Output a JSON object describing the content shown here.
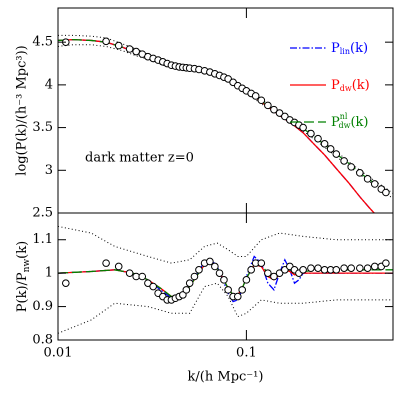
{
  "chart_data": [
    {
      "type": "line",
      "ylabel": "log(P(k)/(h⁻³ Mpc³))",
      "annotation": "dark matter z=0",
      "xscale": "log",
      "xlim": [
        0.01,
        0.6
      ],
      "ylim": [
        2.5,
        4.9
      ],
      "yticks": [
        2.5,
        3,
        3.5,
        4,
        4.5
      ],
      "series": [
        {
          "name": "P",
          "name_sub": "lin",
          "name_tail": "(k)",
          "color": "#0000ff",
          "line": "dashdot",
          "x": [
            0.01,
            0.012,
            0.015,
            0.018,
            0.022,
            0.026,
            0.03,
            0.035,
            0.04,
            0.045,
            0.05,
            0.055,
            0.06,
            0.07,
            0.08,
            0.09,
            0.1,
            0.12,
            0.14,
            0.16,
            0.18,
            0.2,
            0.23,
            0.26,
            0.3,
            0.35,
            0.4,
            0.45,
            0.5,
            0.55,
            0.6
          ],
          "values": [
            4.52,
            4.53,
            4.52,
            4.5,
            4.44,
            4.38,
            4.33,
            4.27,
            4.22,
            4.2,
            4.19,
            4.18,
            4.16,
            4.12,
            4.07,
            3.99,
            3.92,
            3.8,
            3.69,
            3.6,
            3.52,
            3.44,
            3.3,
            3.18,
            3.02,
            2.85,
            2.69,
            2.56,
            2.45,
            2.35,
            2.26
          ]
        },
        {
          "name": "P",
          "name_sub": "dw",
          "name_tail": "(k)",
          "color": "#ff0000",
          "line": "solid",
          "x": [
            0.01,
            0.012,
            0.015,
            0.018,
            0.022,
            0.026,
            0.03,
            0.035,
            0.04,
            0.045,
            0.05,
            0.055,
            0.06,
            0.07,
            0.08,
            0.09,
            0.1,
            0.12,
            0.14,
            0.16,
            0.18,
            0.2,
            0.23,
            0.26,
            0.3,
            0.35,
            0.4,
            0.45,
            0.5,
            0.55,
            0.6
          ],
          "values": [
            4.52,
            4.53,
            4.52,
            4.5,
            4.44,
            4.38,
            4.33,
            4.27,
            4.22,
            4.2,
            4.19,
            4.18,
            4.16,
            4.12,
            4.06,
            3.99,
            3.93,
            3.8,
            3.69,
            3.6,
            3.52,
            3.44,
            3.3,
            3.18,
            3.02,
            2.85,
            2.69,
            2.56,
            2.45,
            2.35,
            2.26
          ]
        },
        {
          "name": "P",
          "name_sub": "dw",
          "name_sup": "nl",
          "name_tail": "(k)",
          "color": "#008000",
          "line": "dashed",
          "x": [
            0.01,
            0.012,
            0.015,
            0.018,
            0.022,
            0.026,
            0.03,
            0.035,
            0.04,
            0.045,
            0.05,
            0.055,
            0.06,
            0.07,
            0.08,
            0.09,
            0.1,
            0.12,
            0.14,
            0.16,
            0.18,
            0.2,
            0.23,
            0.26,
            0.3,
            0.35,
            0.4,
            0.45,
            0.5,
            0.55,
            0.6
          ],
          "values": [
            4.52,
            4.53,
            4.52,
            4.5,
            4.44,
            4.38,
            4.33,
            4.27,
            4.23,
            4.21,
            4.2,
            4.185,
            4.165,
            4.12,
            4.06,
            3.99,
            3.93,
            3.81,
            3.71,
            3.63,
            3.56,
            3.49,
            3.39,
            3.3,
            3.19,
            3.08,
            2.97,
            2.89,
            2.82,
            2.76,
            2.7
          ]
        },
        {
          "color": "#000000",
          "line": "dotted",
          "x": [
            0.01,
            0.012,
            0.015,
            0.018,
            0.022,
            0.026,
            0.03,
            0.035,
            0.04,
            0.045,
            0.05,
            0.055,
            0.06,
            0.07,
            0.08,
            0.09,
            0.1,
            0.12,
            0.14,
            0.16,
            0.18,
            0.2,
            0.23,
            0.26,
            0.3,
            0.35,
            0.4,
            0.45,
            0.5,
            0.55,
            0.6
          ],
          "values": [
            4.58,
            4.58,
            4.57,
            4.55,
            4.48,
            4.42,
            4.36,
            4.3,
            4.25,
            4.23,
            4.22,
            4.2,
            4.18,
            4.14,
            4.09,
            4.01,
            3.95,
            3.83,
            3.73,
            3.65,
            3.58,
            3.51,
            3.41,
            3.32,
            3.22,
            3.1,
            3.0,
            2.92,
            2.85,
            2.79,
            2.73
          ]
        },
        {
          "color": "#000000",
          "line": "dotted",
          "x": [
            0.01,
            0.012,
            0.015,
            0.018,
            0.022,
            0.026,
            0.03,
            0.035,
            0.04,
            0.045,
            0.05,
            0.055,
            0.06,
            0.07,
            0.08,
            0.09,
            0.1,
            0.12,
            0.14,
            0.16,
            0.18,
            0.2,
            0.23,
            0.26,
            0.3,
            0.35,
            0.4,
            0.45,
            0.5,
            0.55,
            0.6
          ],
          "values": [
            4.45,
            4.47,
            4.47,
            4.45,
            4.4,
            4.34,
            4.3,
            4.24,
            4.2,
            4.18,
            4.17,
            4.16,
            4.14,
            4.1,
            4.04,
            3.97,
            3.9,
            3.78,
            3.68,
            3.6,
            3.53,
            3.46,
            3.36,
            3.27,
            3.16,
            3.05,
            2.95,
            2.87,
            2.79,
            2.73,
            2.67
          ]
        },
        {
          "color": "#000000",
          "line": "none",
          "marker": "circle",
          "x": [
            0.011,
            0.018,
            0.021,
            0.024,
            0.026,
            0.028,
            0.03,
            0.032,
            0.034,
            0.036,
            0.038,
            0.04,
            0.042,
            0.044,
            0.046,
            0.048,
            0.05,
            0.053,
            0.056,
            0.06,
            0.064,
            0.068,
            0.072,
            0.076,
            0.08,
            0.085,
            0.09,
            0.095,
            0.1,
            0.106,
            0.112,
            0.12,
            0.13,
            0.14,
            0.15,
            0.16,
            0.17,
            0.18,
            0.19,
            0.2,
            0.22,
            0.24,
            0.26,
            0.28,
            0.3,
            0.33,
            0.36,
            0.4,
            0.44,
            0.48,
            0.52,
            0.55
          ],
          "values": [
            4.5,
            4.51,
            4.46,
            4.42,
            4.39,
            4.36,
            4.33,
            4.31,
            4.29,
            4.27,
            4.25,
            4.23,
            4.22,
            4.21,
            4.205,
            4.2,
            4.195,
            4.19,
            4.18,
            4.165,
            4.15,
            4.13,
            4.11,
            4.09,
            4.07,
            4.03,
            3.99,
            3.96,
            3.93,
            3.9,
            3.87,
            3.82,
            3.76,
            3.71,
            3.67,
            3.63,
            3.59,
            3.56,
            3.53,
            3.5,
            3.43,
            3.37,
            3.31,
            3.25,
            3.19,
            3.11,
            3.04,
            2.97,
            2.9,
            2.84,
            2.78,
            2.74
          ]
        }
      ]
    },
    {
      "type": "line",
      "ylabel": {
        "main": "P(k)/P",
        "sub": "nw",
        "tail": "(k)"
      },
      "xlabel": "k/(h Mpc⁻¹)",
      "xscale": "log",
      "xlim": [
        0.01,
        0.6
      ],
      "xticks": [
        0.01,
        0.1
      ],
      "ylim": [
        0.8,
        1.18
      ],
      "yticks": [
        0.8,
        0.9,
        1,
        1.1
      ],
      "series": [
        {
          "color": "#0000ff",
          "line": "dashdot",
          "x": [
            0.01,
            0.015,
            0.02,
            0.025,
            0.03,
            0.035,
            0.04,
            0.045,
            0.05,
            0.055,
            0.06,
            0.065,
            0.07,
            0.075,
            0.08,
            0.085,
            0.09,
            0.095,
            0.1,
            0.11,
            0.12,
            0.13,
            0.14,
            0.15,
            0.16,
            0.17,
            0.18,
            0.19,
            0.2,
            0.25,
            0.3,
            0.4,
            0.5,
            0.6
          ],
          "values": [
            1.0,
            1.005,
            1.01,
            1.0,
            0.98,
            0.95,
            0.925,
            0.93,
            0.96,
            1.0,
            1.035,
            1.04,
            1.02,
            0.98,
            0.94,
            0.915,
            0.92,
            0.95,
            0.99,
            1.05,
            1.03,
            0.97,
            0.95,
            1.0,
            1.04,
            1.01,
            0.97,
            0.98,
            1.0,
            1.0,
            1.0,
            1.0,
            1.0,
            1.0
          ]
        },
        {
          "color": "#ff0000",
          "line": "solid",
          "x": [
            0.01,
            0.015,
            0.02,
            0.025,
            0.03,
            0.035,
            0.04,
            0.045,
            0.05,
            0.055,
            0.06,
            0.065,
            0.07,
            0.075,
            0.08,
            0.085,
            0.09,
            0.095,
            0.1,
            0.11,
            0.12,
            0.13,
            0.14,
            0.15,
            0.16,
            0.17,
            0.18,
            0.19,
            0.2,
            0.25,
            0.3,
            0.4,
            0.5,
            0.6
          ],
          "values": [
            1.0,
            1.005,
            1.01,
            1.0,
            0.98,
            0.955,
            0.93,
            0.935,
            0.96,
            0.995,
            1.025,
            1.03,
            1.015,
            0.985,
            0.955,
            0.935,
            0.935,
            0.955,
            0.985,
            1.025,
            1.02,
            0.99,
            0.98,
            0.995,
            1.01,
            1.005,
            0.995,
            0.997,
            1.0,
            1.0,
            1.0,
            1.0,
            1.0,
            1.0
          ]
        },
        {
          "color": "#008000",
          "line": "dashed",
          "x": [
            0.01,
            0.015,
            0.02,
            0.025,
            0.03,
            0.035,
            0.04,
            0.045,
            0.05,
            0.055,
            0.06,
            0.065,
            0.07,
            0.075,
            0.08,
            0.085,
            0.09,
            0.095,
            0.1,
            0.11,
            0.12,
            0.13,
            0.14,
            0.15,
            0.16,
            0.17,
            0.18,
            0.19,
            0.2,
            0.25,
            0.3,
            0.4,
            0.5,
            0.6
          ],
          "values": [
            1.0,
            1.005,
            1.01,
            1.0,
            0.98,
            0.955,
            0.93,
            0.935,
            0.96,
            0.995,
            1.025,
            1.03,
            1.015,
            0.985,
            0.955,
            0.935,
            0.935,
            0.955,
            0.985,
            1.025,
            1.025,
            1.0,
            0.99,
            1.0,
            1.01,
            1.01,
            1.005,
            1.005,
            1.005,
            1.01,
            1.01,
            1.01,
            1.01,
            1.01
          ]
        },
        {
          "color": "#000000",
          "line": "dotted",
          "x": [
            0.01,
            0.015,
            0.02,
            0.03,
            0.04,
            0.05,
            0.06,
            0.07,
            0.08,
            0.09,
            0.1,
            0.12,
            0.15,
            0.2,
            0.3,
            0.5,
            0.6
          ],
          "values": [
            1.14,
            1.12,
            1.08,
            1.05,
            1.03,
            1.04,
            1.08,
            1.09,
            1.07,
            1.05,
            1.05,
            1.1,
            1.12,
            1.11,
            1.1,
            1.1,
            1.1
          ]
        },
        {
          "color": "#000000",
          "line": "dotted",
          "x": [
            0.01,
            0.015,
            0.02,
            0.03,
            0.04,
            0.05,
            0.06,
            0.07,
            0.08,
            0.09,
            0.1,
            0.12,
            0.15,
            0.2,
            0.3,
            0.5,
            0.6
          ],
          "values": [
            0.82,
            0.86,
            0.91,
            0.9,
            0.88,
            0.88,
            0.96,
            0.97,
            0.93,
            0.87,
            0.88,
            0.92,
            0.91,
            0.91,
            0.92,
            0.92,
            0.92
          ]
        },
        {
          "color": "#000000",
          "line": "none",
          "marker": "circle",
          "x": [
            0.011,
            0.018,
            0.021,
            0.024,
            0.026,
            0.028,
            0.03,
            0.032,
            0.034,
            0.036,
            0.038,
            0.04,
            0.042,
            0.044,
            0.046,
            0.048,
            0.05,
            0.053,
            0.056,
            0.06,
            0.064,
            0.068,
            0.072,
            0.076,
            0.08,
            0.085,
            0.09,
            0.095,
            0.1,
            0.106,
            0.112,
            0.12,
            0.13,
            0.14,
            0.15,
            0.16,
            0.17,
            0.18,
            0.19,
            0.2,
            0.22,
            0.24,
            0.26,
            0.28,
            0.3,
            0.33,
            0.36,
            0.4,
            0.44,
            0.48,
            0.52,
            0.55
          ],
          "values": [
            0.97,
            1.03,
            1.02,
            1.0,
            0.99,
            0.99,
            0.97,
            0.96,
            0.94,
            0.93,
            0.92,
            0.92,
            0.925,
            0.93,
            0.935,
            0.95,
            0.97,
            0.99,
            1.01,
            1.03,
            1.035,
            1.02,
            1.0,
            0.98,
            0.95,
            0.93,
            0.93,
            0.95,
            0.98,
            1.01,
            1.03,
            1.03,
            1.0,
            0.99,
            1.0,
            1.01,
            1.02,
            1.01,
            1.0,
            1.01,
            1.015,
            1.015,
            1.01,
            1.01,
            1.01,
            1.015,
            1.015,
            1.015,
            1.015,
            1.02,
            1.02,
            1.03
          ]
        }
      ]
    }
  ]
}
